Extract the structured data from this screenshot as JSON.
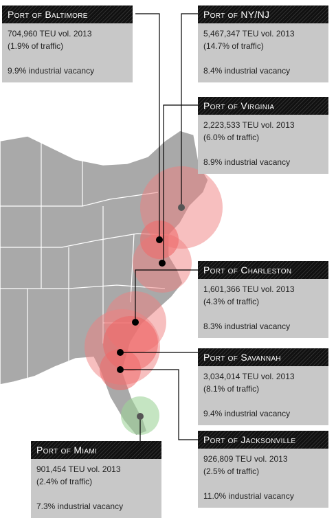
{
  "ports": [
    {
      "name": "Port of Baltimore",
      "volume": "704,960 TEU vol. 2013",
      "share": "(1.9% of traffic)",
      "vacancy": "9.9% industrial vacancy"
    },
    {
      "name": "Port of NY/NJ",
      "volume": "5,467,347 TEU vol. 2013",
      "share": "(14.7% of traffic)",
      "vacancy": "8.4% industrial vacancy"
    },
    {
      "name": "Port of Virginia",
      "volume": "2,223,533 TEU vol. 2013",
      "share": "(6.0% of traffic)",
      "vacancy": "8.9% industrial vacancy"
    },
    {
      "name": "Port of Charleston",
      "volume": "1,601,366 TEU vol. 2013",
      "share": "(4.3% of traffic)",
      "vacancy": "8.3% industrial vacancy"
    },
    {
      "name": "Port of Savannah",
      "volume": "3,034,014 TEU vol. 2013",
      "share": "(8.1% of traffic)",
      "vacancy": "9.4% industrial vacancy"
    },
    {
      "name": "Port of Jacksonville",
      "volume": "926,809 TEU vol. 2013",
      "share": "(2.5% of traffic)",
      "vacancy": "11.0% industrial vacancy"
    },
    {
      "name": "Port of Miami",
      "volume": "901,454 TEU vol. 2013",
      "share": "(2.4% of traffic)",
      "vacancy": "7.3% industrial vacancy"
    }
  ]
}
